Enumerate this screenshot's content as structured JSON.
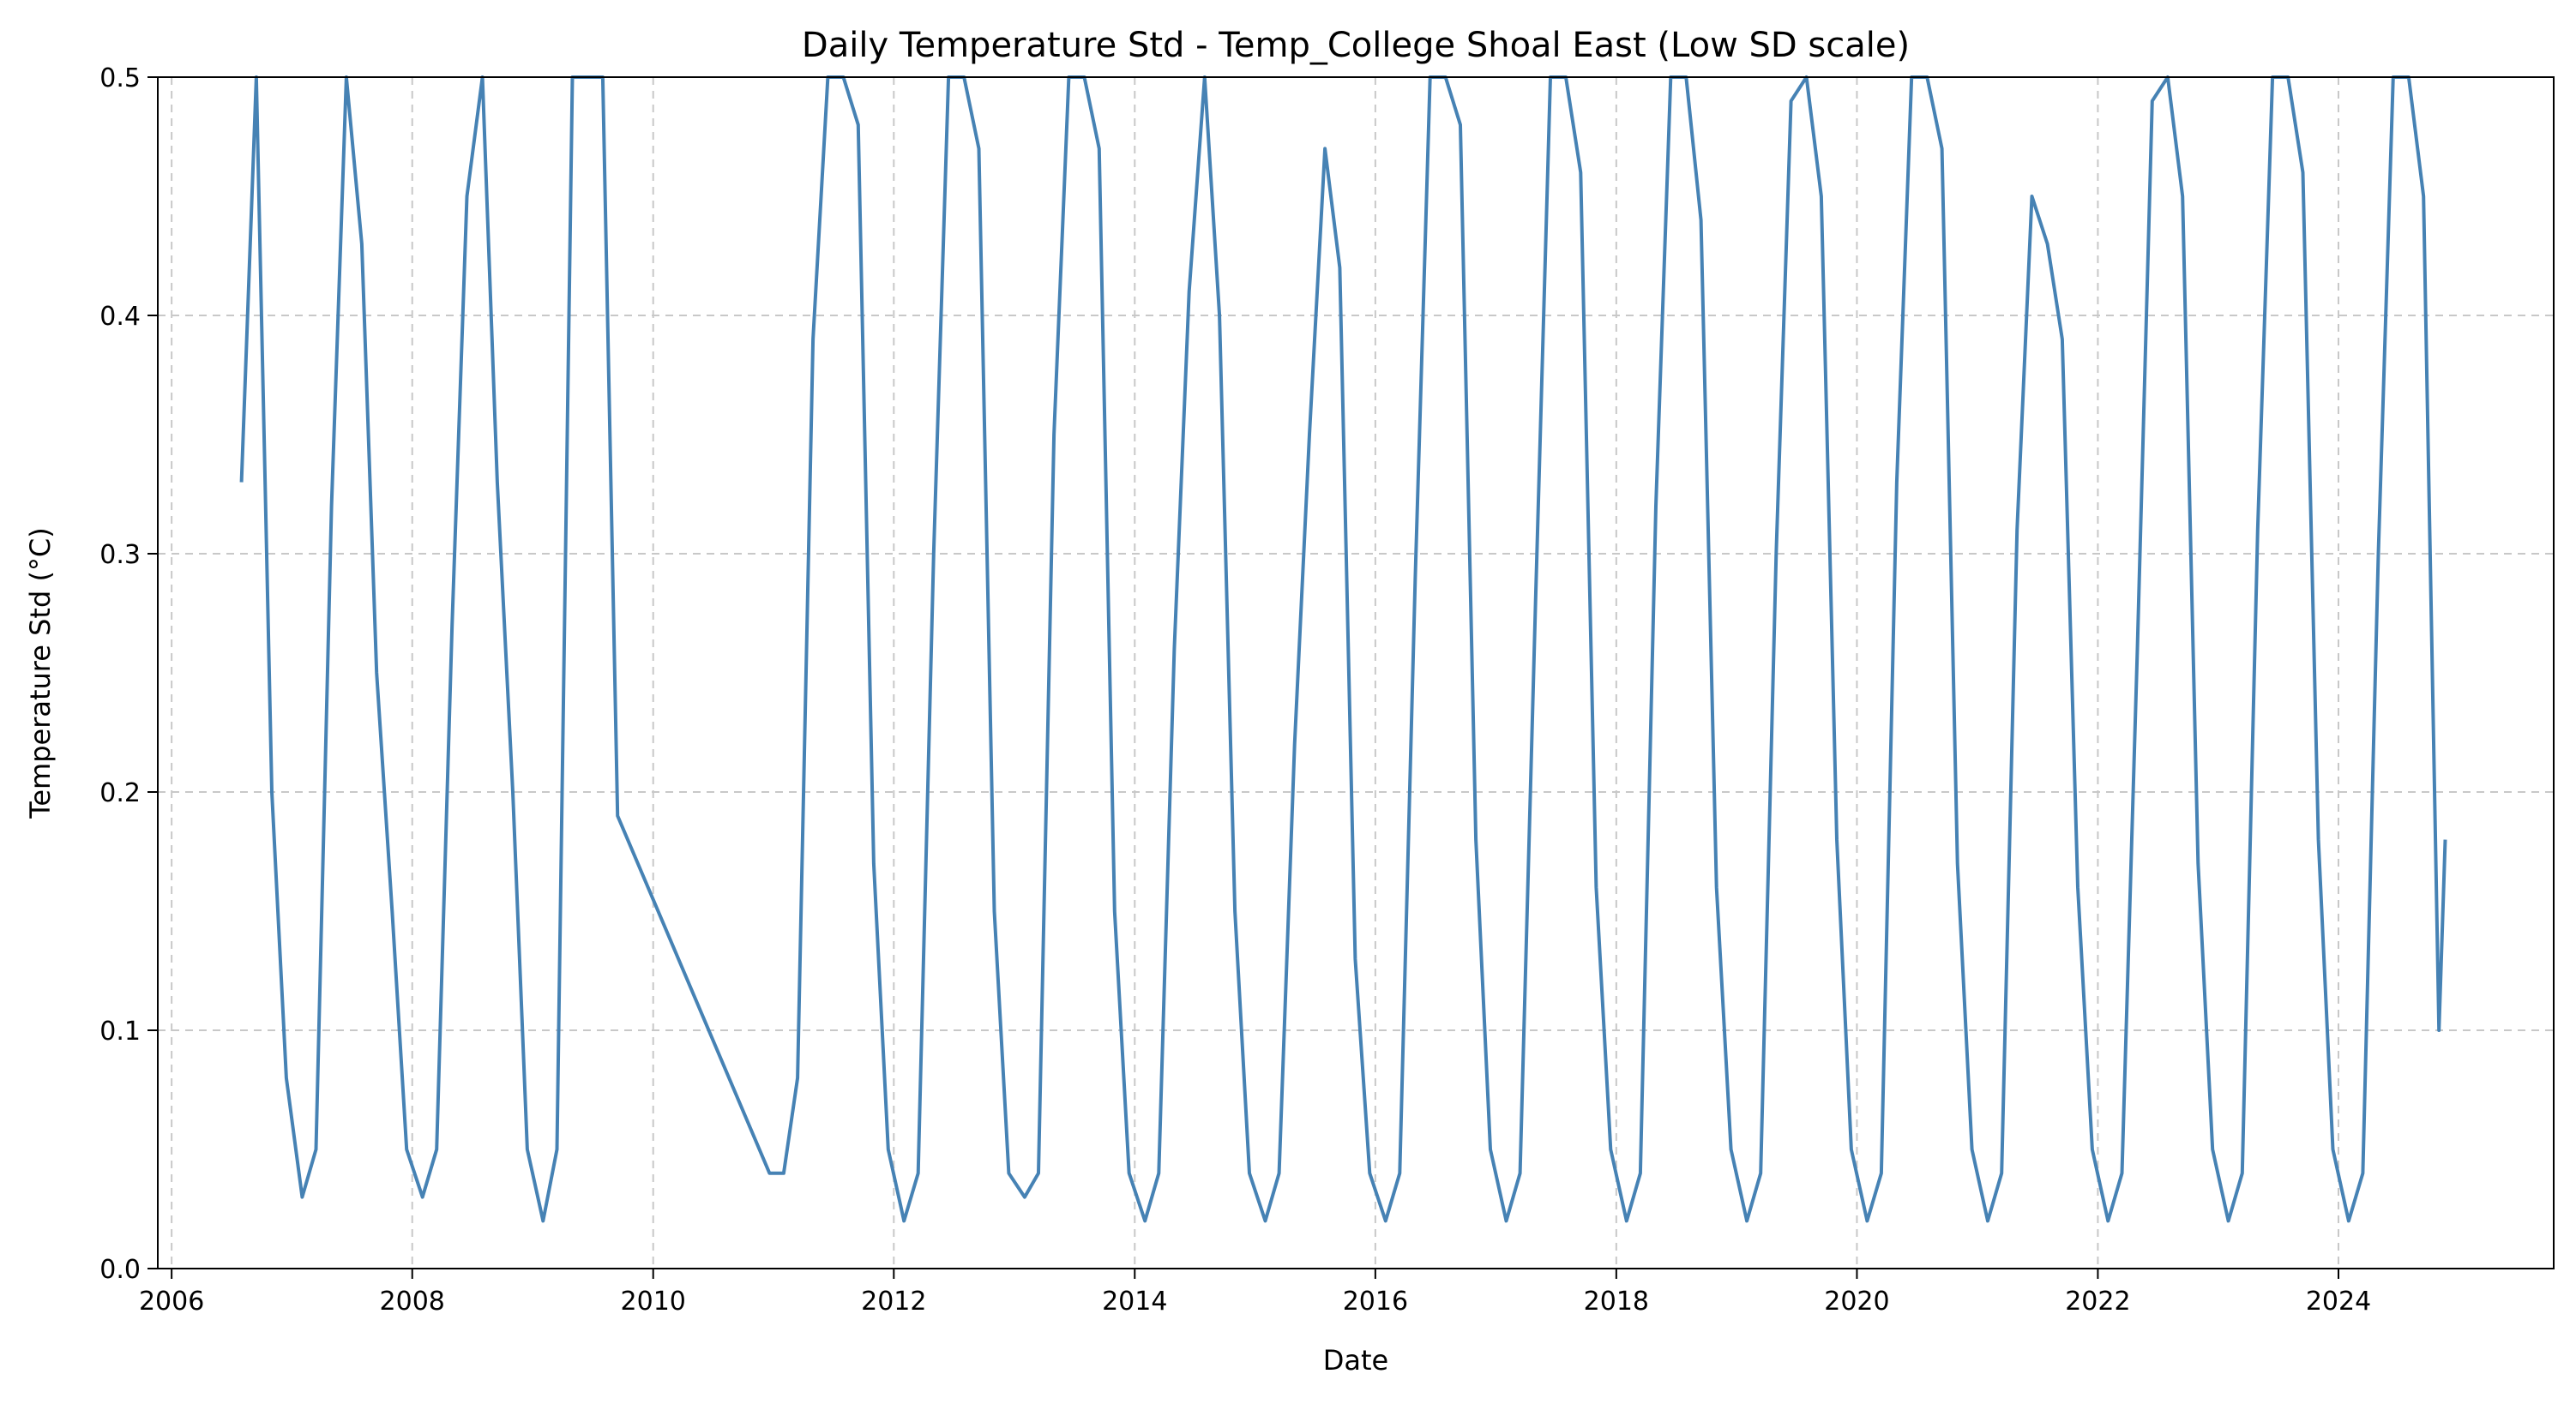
{
  "chart_data": {
    "type": "line",
    "title": "Daily Temperature Std - Temp_College Shoal East (Low SD scale)",
    "xlabel": "Date",
    "ylabel": "Temperature Std (°C)",
    "xlim": [
      "2005-11-20",
      "2025-10-15"
    ],
    "ylim": [
      0,
      0.5
    ],
    "x_ticks": [
      "2006",
      "2008",
      "2010",
      "2012",
      "2014",
      "2016",
      "2018",
      "2020",
      "2022",
      "2024"
    ],
    "y_ticks": [
      "0.0",
      "0.1",
      "0.2",
      "0.3",
      "0.4",
      "0.5"
    ],
    "grid": true,
    "line_color": "#4682b4",
    "series": [
      {
        "x": [
          "2006-08-01",
          "2006-09-15",
          "2006-11-01",
          "2006-12-15",
          "2007-02-01",
          "2007-03-15",
          "2007-05-01",
          "2007-06-15",
          "2007-08-01",
          "2007-09-15",
          "2007-11-01",
          "2007-12-15",
          "2008-02-01",
          "2008-03-15",
          "2008-05-01",
          "2008-06-15",
          "2008-08-01",
          "2008-09-15",
          "2008-11-01",
          "2008-12-15",
          "2009-02-01",
          "2009-03-15",
          "2009-05-01",
          "2009-06-15",
          "2009-08-01",
          "2009-09-15",
          "2010-12-20",
          "2011-02-01",
          "2011-03-15",
          "2011-05-01",
          "2011-06-15",
          "2011-08-01",
          "2011-09-15",
          "2011-11-01",
          "2011-12-15",
          "2012-02-01",
          "2012-03-15",
          "2012-05-01",
          "2012-06-15",
          "2012-08-01",
          "2012-09-15",
          "2012-11-01",
          "2012-12-15",
          "2013-02-01",
          "2013-03-15",
          "2013-05-01",
          "2013-06-15",
          "2013-08-01",
          "2013-09-15",
          "2013-11-01",
          "2013-12-15",
          "2014-02-01",
          "2014-03-15",
          "2014-05-01",
          "2014-06-15",
          "2014-08-01",
          "2014-09-15",
          "2014-11-01",
          "2014-12-15",
          "2015-02-01",
          "2015-03-15",
          "2015-05-01",
          "2015-06-15",
          "2015-08-01",
          "2015-09-15",
          "2015-11-01",
          "2015-12-15",
          "2016-02-01",
          "2016-03-15",
          "2016-05-01",
          "2016-06-15",
          "2016-08-01",
          "2016-09-15",
          "2016-11-01",
          "2016-12-15",
          "2017-02-01",
          "2017-03-15",
          "2017-05-01",
          "2017-06-15",
          "2017-08-01",
          "2017-09-15",
          "2017-11-01",
          "2017-12-15",
          "2018-02-01",
          "2018-03-15",
          "2018-05-01",
          "2018-06-15",
          "2018-08-01",
          "2018-09-15",
          "2018-11-01",
          "2018-12-15",
          "2019-02-01",
          "2019-03-15",
          "2019-05-01",
          "2019-06-15",
          "2019-08-01",
          "2019-09-15",
          "2019-11-01",
          "2019-12-15",
          "2020-02-01",
          "2020-03-15",
          "2020-05-01",
          "2020-06-15",
          "2020-08-01",
          "2020-09-15",
          "2020-11-01",
          "2020-12-15",
          "2021-02-01",
          "2021-03-15",
          "2021-05-01",
          "2021-06-15",
          "2021-08-01",
          "2021-09-15",
          "2021-11-01",
          "2021-12-15",
          "2022-02-01",
          "2022-03-15",
          "2022-05-01",
          "2022-06-15",
          "2022-08-01",
          "2022-09-15",
          "2022-11-01",
          "2022-12-15",
          "2023-02-01",
          "2023-03-15",
          "2023-05-01",
          "2023-06-15",
          "2023-08-01",
          "2023-09-15",
          "2023-11-01",
          "2023-12-15",
          "2024-02-01",
          "2024-03-15",
          "2024-05-01",
          "2024-06-15",
          "2024-08-01",
          "2024-09-15",
          "2024-11-01",
          "2024-11-20"
        ],
        "values": [
          0.33,
          0.5,
          0.2,
          0.08,
          0.03,
          0.05,
          0.32,
          0.5,
          0.43,
          0.25,
          0.15,
          0.05,
          0.03,
          0.05,
          0.27,
          0.45,
          0.5,
          0.33,
          0.2,
          0.05,
          0.02,
          0.05,
          0.5,
          0.5,
          0.5,
          0.19,
          0.04,
          0.04,
          0.08,
          0.39,
          0.5,
          0.5,
          0.48,
          0.17,
          0.05,
          0.02,
          0.04,
          0.3,
          0.5,
          0.5,
          0.47,
          0.15,
          0.04,
          0.03,
          0.04,
          0.35,
          0.5,
          0.5,
          0.47,
          0.15,
          0.04,
          0.02,
          0.04,
          0.26,
          0.41,
          0.5,
          0.4,
          0.15,
          0.04,
          0.02,
          0.04,
          0.22,
          0.35,
          0.47,
          0.42,
          0.13,
          0.04,
          0.02,
          0.04,
          0.29,
          0.5,
          0.5,
          0.48,
          0.18,
          0.05,
          0.02,
          0.04,
          0.28,
          0.5,
          0.5,
          0.46,
          0.16,
          0.05,
          0.02,
          0.04,
          0.32,
          0.5,
          0.5,
          0.44,
          0.16,
          0.05,
          0.02,
          0.04,
          0.3,
          0.49,
          0.5,
          0.45,
          0.18,
          0.05,
          0.02,
          0.04,
          0.33,
          0.5,
          0.5,
          0.47,
          0.17,
          0.05,
          0.02,
          0.04,
          0.31,
          0.45,
          0.43,
          0.39,
          0.16,
          0.05,
          0.02,
          0.04,
          0.26,
          0.49,
          0.5,
          0.45,
          0.17,
          0.05,
          0.02,
          0.04,
          0.31,
          0.5,
          0.5,
          0.46,
          0.18,
          0.05,
          0.02,
          0.04,
          0.3,
          0.5,
          0.5,
          0.45,
          0.1,
          0.18
        ]
      }
    ]
  }
}
